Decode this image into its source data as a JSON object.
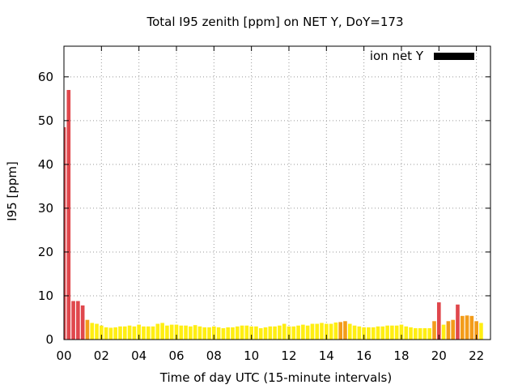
{
  "chart_data": {
    "type": "bar",
    "title": "Total I95 zenith [ppm] on NET Y, DoY=173",
    "xlabel": "Time of day UTC (15-minute intervals)",
    "ylabel": "I95 [ppm]",
    "xlim": [
      0,
      22.75
    ],
    "ylim": [
      0,
      67
    ],
    "x_ticks": [
      "00",
      "02",
      "04",
      "06",
      "08",
      "10",
      "12",
      "14",
      "16",
      "18",
      "20",
      "22"
    ],
    "y_ticks": [
      0,
      10,
      20,
      30,
      40,
      50,
      60
    ],
    "grid": true,
    "legend_position": "top-right",
    "legend": [
      {
        "name": "ion net Y",
        "color": "#000000"
      }
    ],
    "interval_hours": 0.25,
    "x_start_hour": 0,
    "values": [
      48.5,
      57.0,
      8.8,
      8.8,
      7.8,
      4.5,
      3.8,
      3.6,
      3.2,
      2.8,
      2.7,
      2.8,
      3.0,
      3.0,
      3.2,
      3.0,
      3.4,
      3.0,
      3.0,
      3.0,
      3.6,
      3.8,
      3.2,
      3.4,
      3.4,
      3.2,
      3.2,
      3.0,
      3.3,
      3.0,
      2.8,
      2.8,
      3.0,
      2.8,
      2.6,
      2.8,
      2.8,
      3.0,
      3.2,
      3.2,
      3.0,
      3.0,
      2.6,
      2.8,
      3.0,
      3.0,
      3.2,
      3.6,
      3.0,
      3.0,
      3.2,
      3.4,
      3.2,
      3.6,
      3.6,
      3.8,
      3.6,
      3.6,
      3.9,
      4.0,
      4.2,
      3.6,
      3.2,
      3.0,
      2.8,
      2.8,
      2.8,
      3.0,
      3.0,
      3.2,
      3.2,
      3.2,
      3.4,
      3.0,
      2.8,
      2.6,
      2.6,
      2.6,
      2.6,
      4.2,
      8.5,
      3.4,
      4.2,
      4.5,
      8.0,
      5.4,
      5.5,
      5.4,
      4.2,
      3.8
    ]
  }
}
